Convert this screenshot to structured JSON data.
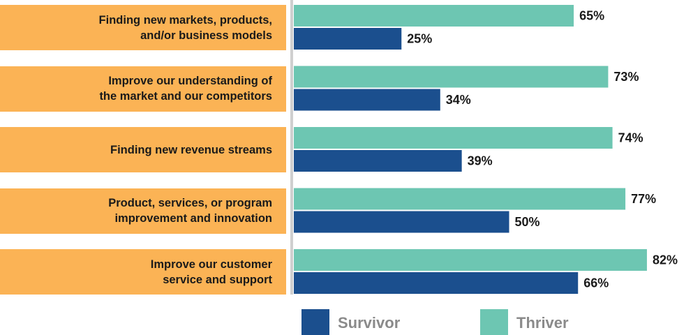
{
  "chart_data": {
    "type": "bar",
    "orientation": "horizontal",
    "categories": [
      "Finding new markets, products,\nand/or business models",
      "Improve our understanding of\nthe market and our competitors",
      "Finding new revenue streams",
      "Product, services, or program\nimprovement and innovation",
      "Improve our customer\nservice and support"
    ],
    "series": [
      {
        "name": "Survivor",
        "color": "#1b4f8e",
        "values": [
          25,
          34,
          39,
          50,
          66
        ],
        "value_labels": [
          "25%",
          "34%",
          "39%",
          "50%",
          "66%"
        ]
      },
      {
        "name": "Thriver",
        "color": "#6dc6b2",
        "values": [
          65,
          73,
          74,
          77,
          82
        ],
        "value_labels": [
          "65%",
          "73%",
          "74%",
          "77%",
          "82%"
        ]
      }
    ],
    "xlim": [
      0,
      94
    ],
    "category_color": "#fbb355"
  }
}
